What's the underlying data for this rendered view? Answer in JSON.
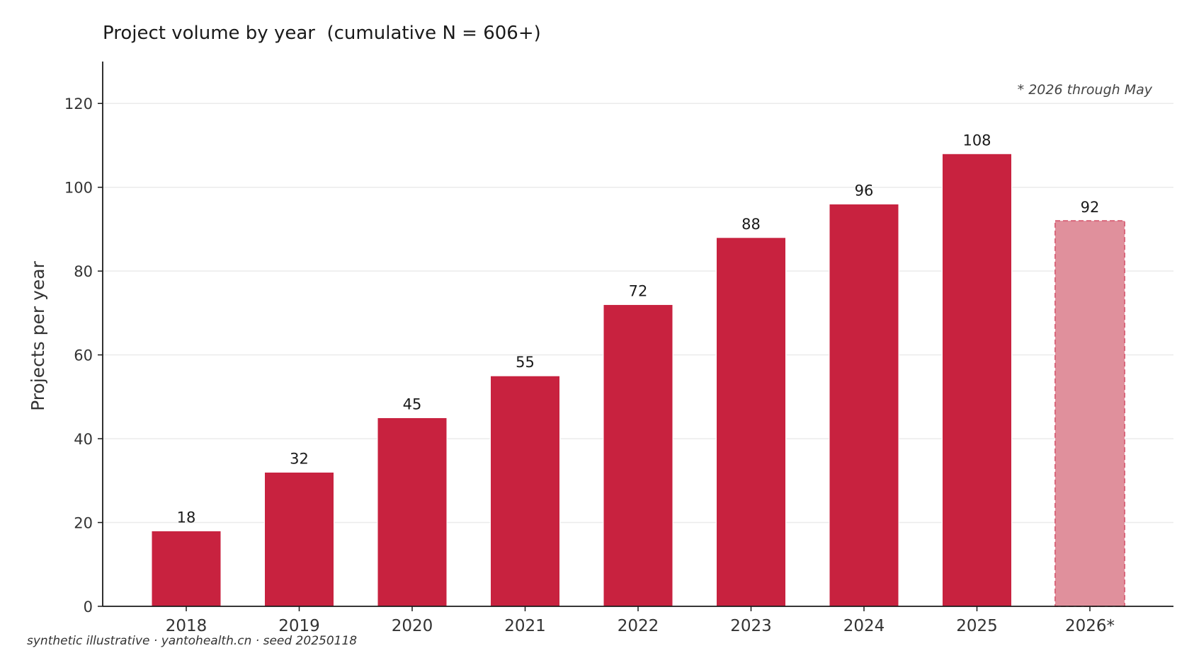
{
  "chart_data": {
    "type": "bar",
    "title": "Project volume by year  (cumulative N = 606+)",
    "xlabel": "",
    "ylabel": "Projects per year",
    "categories": [
      "2018",
      "2019",
      "2020",
      "2021",
      "2022",
      "2023",
      "2024",
      "2025",
      "2026*"
    ],
    "values": [
      18,
      32,
      45,
      55,
      72,
      88,
      96,
      108,
      92
    ],
    "data_labels": [
      "18",
      "32",
      "45",
      "55",
      "72",
      "88",
      "96",
      "108",
      "92"
    ],
    "partial_categories": [
      "2026*"
    ],
    "annotation": "* 2026 through May",
    "ylim": [
      0,
      130
    ],
    "yticks": [
      0,
      20,
      40,
      60,
      80,
      100,
      120
    ],
    "grid": "horizontal",
    "colors": {
      "bar": "#c8223f",
      "bar_partial": "#e0909c",
      "bar_partial_edge": "#d9687c",
      "grid": "#ebebeb",
      "axis": "#1a1a1a",
      "tick_text": "#333333"
    }
  },
  "footer": "synthetic illustrative · yantohealth.cn · seed 20250118"
}
